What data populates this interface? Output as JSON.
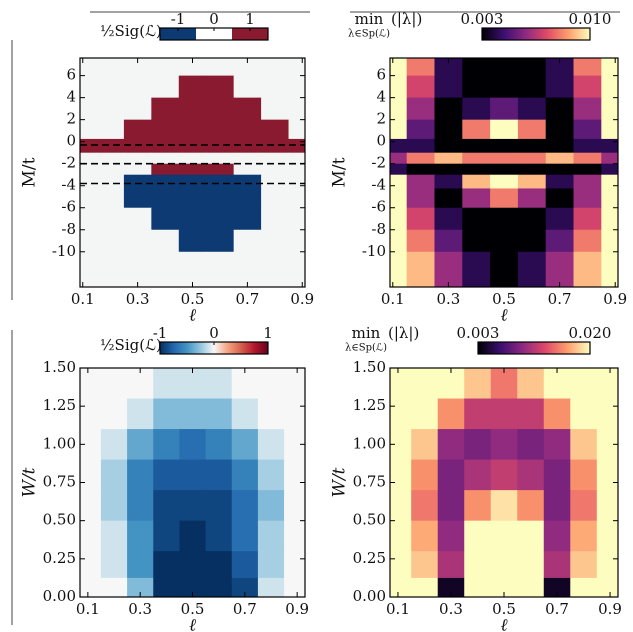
{
  "chart_data": [
    {
      "type": "heatmap",
      "xlabel": "ℓ",
      "ylabel": "M/t",
      "x": [
        0.1,
        0.2,
        0.3,
        0.4,
        0.5,
        0.6,
        0.7,
        0.8,
        0.9
      ],
      "y": [
        7,
        5,
        3,
        1,
        -0.5,
        -1.5,
        -2.5,
        -3.5,
        -5,
        -7,
        -9,
        -11
      ],
      "z": [
        [
          0,
          0,
          0,
          0,
          0,
          0,
          0,
          0,
          0
        ],
        [
          0,
          0,
          0,
          0,
          1,
          1,
          0,
          0,
          0
        ],
        [
          0,
          0,
          0,
          1,
          1,
          1,
          1,
          0,
          0
        ],
        [
          0,
          0,
          1,
          1,
          1,
          1,
          1,
          1,
          0
        ],
        [
          1,
          1,
          1,
          1,
          1,
          1,
          1,
          1,
          1
        ],
        [
          0,
          0,
          0,
          0,
          0,
          0,
          0,
          0,
          0
        ],
        [
          0,
          0,
          0,
          1,
          1,
          1,
          0,
          0,
          0
        ],
        [
          0,
          0,
          -1,
          -1,
          -1,
          -1,
          -1,
          0,
          0
        ],
        [
          0,
          0,
          -1,
          -1,
          -1,
          -1,
          -1,
          0,
          0
        ],
        [
          0,
          0,
          0,
          -1,
          -1,
          -1,
          -1,
          0,
          0
        ],
        [
          0,
          0,
          0,
          0,
          -1,
          -1,
          0,
          0,
          0
        ],
        [
          0,
          0,
          0,
          0,
          0,
          0,
          0,
          0,
          0
        ]
      ],
      "xlim": [
        0.09,
        0.91
      ],
      "ylim": [
        -13.2,
        7.6
      ],
      "xticks": [
        0.1,
        0.3,
        0.5,
        0.7,
        0.9
      ],
      "yticks": [
        -10,
        -8,
        -6,
        -4,
        -2,
        0,
        2,
        4,
        6
      ],
      "hlines": [
        -0.3,
        -2,
        -3.8
      ],
      "colorbar": {
        "label": "½Sig(ℒ)",
        "discrete": true,
        "clim": [
          -1.5,
          1.5
        ],
        "ticks": [
          -1,
          0,
          1
        ],
        "colors": [
          "#0d3a72",
          "#f4f5f5",
          "#8a1a2f"
        ]
      }
    },
    {
      "type": "heatmap",
      "xlabel": "ℓ",
      "ylabel": "M/t",
      "x": [
        0.1,
        0.2,
        0.3,
        0.4,
        0.5,
        0.6,
        0.7,
        0.8,
        0.9
      ],
      "y": [
        7,
        5,
        3,
        1,
        -0.5,
        -1.5,
        -2.5,
        -3.5,
        -5,
        -7,
        -9,
        -11
      ],
      "z": [
        [
          0.01,
          0.008,
          0.004,
          0.003,
          0.003,
          0.003,
          0.004,
          0.008,
          0.01
        ],
        [
          0.01,
          0.007,
          0.004,
          0.003,
          0.003,
          0.003,
          0.004,
          0.007,
          0.01
        ],
        [
          0.01,
          0.006,
          0.003,
          0.004,
          0.005,
          0.004,
          0.003,
          0.006,
          0.01
        ],
        [
          0.01,
          0.005,
          0.003,
          0.008,
          0.01,
          0.008,
          0.003,
          0.005,
          0.01
        ],
        [
          0.004,
          0.004,
          0.003,
          0.003,
          0.003,
          0.003,
          0.003,
          0.004,
          0.004
        ],
        [
          0.006,
          0.008,
          0.009,
          0.008,
          0.008,
          0.008,
          0.009,
          0.008,
          0.006
        ],
        [
          0.004,
          0.003,
          0.003,
          0.003,
          0.003,
          0.003,
          0.003,
          0.003,
          0.004
        ],
        [
          0.01,
          0.006,
          0.004,
          0.009,
          0.01,
          0.009,
          0.004,
          0.006,
          0.01
        ],
        [
          0.01,
          0.006,
          0.003,
          0.006,
          0.008,
          0.006,
          0.003,
          0.006,
          0.01
        ],
        [
          0.01,
          0.007,
          0.004,
          0.003,
          0.003,
          0.003,
          0.004,
          0.007,
          0.01
        ],
        [
          0.01,
          0.008,
          0.005,
          0.003,
          0.003,
          0.003,
          0.005,
          0.008,
          0.01
        ],
        [
          0.01,
          0.009,
          0.006,
          0.004,
          0.003,
          0.004,
          0.006,
          0.009,
          0.01
        ]
      ],
      "xlim": [
        0.09,
        0.91
      ],
      "ylim": [
        -13.2,
        7.6
      ],
      "xticks": [
        0.1,
        0.3,
        0.5,
        0.7,
        0.9
      ],
      "yticks": [
        -10,
        -8,
        -6,
        -4,
        -2,
        0,
        2,
        4,
        6
      ],
      "colorbar": {
        "label": "min",
        "label_sub": "λ∈Sp(ℒ)",
        "label_tail": "(|λ|)",
        "clim": [
          0.003,
          0.01
        ],
        "ticks": [
          0.003,
          {
            "value": 0.01,
            "label": "0.010"
          }
        ],
        "colors": [
          "#000004",
          "#3b0f70",
          "#8c2981",
          "#de4968",
          "#fe9f6d",
          "#fcfdbf"
        ]
      }
    },
    {
      "type": "heatmap",
      "xlabel": "ℓ",
      "ylabel": "W/t",
      "x": [
        0.1,
        0.2,
        0.3,
        0.4,
        0.5,
        0.6,
        0.7,
        0.8,
        0.9
      ],
      "y": [
        1.4,
        1.2,
        1.0,
        0.8,
        0.6,
        0.4,
        0.2,
        0.05
      ],
      "z": [
        [
          0,
          0,
          0,
          -0.1,
          -0.1,
          -0.1,
          0,
          0,
          0
        ],
        [
          0,
          0,
          -0.1,
          -0.3,
          -0.3,
          -0.3,
          -0.1,
          0,
          0
        ],
        [
          0,
          -0.1,
          -0.4,
          -0.6,
          -0.7,
          -0.6,
          -0.4,
          -0.1,
          0
        ],
        [
          0,
          -0.2,
          -0.6,
          -0.8,
          -0.8,
          -0.8,
          -0.6,
          -0.2,
          0
        ],
        [
          0,
          -0.2,
          -0.6,
          -0.9,
          -0.9,
          -0.9,
          -0.7,
          -0.3,
          0
        ],
        [
          0,
          -0.1,
          -0.5,
          -0.9,
          -1,
          -0.9,
          -0.7,
          -0.2,
          0
        ],
        [
          0,
          -0.1,
          -0.5,
          -1,
          -1,
          -1,
          -0.8,
          -0.2,
          0
        ],
        [
          0,
          0,
          -0.3,
          -1,
          -1,
          -1,
          -0.9,
          -0.1,
          0
        ]
      ],
      "xlim": [
        0.07,
        0.93
      ],
      "ylim": [
        0,
        1.5
      ],
      "xticks": [
        0.1,
        0.3,
        0.5,
        0.7,
        0.9
      ],
      "yticks": [
        {
          "value": 0,
          "label": "0.00"
        },
        0.25,
        {
          "value": 0.5,
          "label": "0.50"
        },
        0.75,
        {
          "value": 1,
          "label": "1.00"
        },
        1.25,
        {
          "value": 1.5,
          "label": "1.50"
        }
      ],
      "colorbar": {
        "label": "½Sig(ℒ)",
        "clim": [
          -1,
          1
        ],
        "ticks": [
          -1,
          0,
          1
        ],
        "colors": [
          "#053061",
          "#2166ac",
          "#4393c3",
          "#92c5de",
          "#f7f7f7",
          "#f4a582",
          "#d6604d",
          "#b2182b",
          "#67001f"
        ]
      }
    },
    {
      "type": "heatmap",
      "xlabel": "ℓ",
      "ylabel": "W/t",
      "x": [
        0.1,
        0.2,
        0.3,
        0.4,
        0.5,
        0.6,
        0.7,
        0.8,
        0.9
      ],
      "y": [
        1.4,
        1.2,
        1.0,
        0.8,
        0.6,
        0.4,
        0.2,
        0.05
      ],
      "z": [
        [
          0.02,
          0.02,
          0.02,
          0.018,
          0.015,
          0.018,
          0.02,
          0.02,
          0.02
        ],
        [
          0.02,
          0.02,
          0.016,
          0.012,
          0.012,
          0.012,
          0.016,
          0.02,
          0.02
        ],
        [
          0.02,
          0.018,
          0.01,
          0.009,
          0.01,
          0.009,
          0.01,
          0.018,
          0.02
        ],
        [
          0.02,
          0.016,
          0.009,
          0.011,
          0.012,
          0.011,
          0.009,
          0.016,
          0.02
        ],
        [
          0.02,
          0.015,
          0.009,
          0.016,
          0.019,
          0.016,
          0.009,
          0.015,
          0.02
        ],
        [
          0.02,
          0.017,
          0.01,
          0.02,
          0.02,
          0.02,
          0.01,
          0.017,
          0.02
        ],
        [
          0.02,
          0.018,
          0.011,
          0.02,
          0.02,
          0.02,
          0.011,
          0.018,
          0.02
        ],
        [
          0.02,
          0.02,
          0.004,
          0.02,
          0.02,
          0.02,
          0.004,
          0.02,
          0.02
        ]
      ],
      "xlim": [
        0.07,
        0.93
      ],
      "ylim": [
        0,
        1.5
      ],
      "xticks": [
        0.1,
        0.3,
        0.5,
        0.7,
        0.9
      ],
      "yticks": [
        {
          "value": 0,
          "label": "0.00"
        },
        0.25,
        {
          "value": 0.5,
          "label": "0.50"
        },
        0.75,
        {
          "value": 1,
          "label": "1.00"
        },
        1.25,
        {
          "value": 1.5,
          "label": "1.50"
        }
      ],
      "colorbar": {
        "label": "min",
        "label_sub": "λ∈Sp(ℒ)",
        "label_tail": "(|λ|)",
        "clim": [
          0.003,
          0.02
        ],
        "ticks": [
          0.003,
          {
            "value": 0.02,
            "label": "0.020"
          }
        ],
        "colors": [
          "#000004",
          "#3b0f70",
          "#8c2981",
          "#de4968",
          "#fe9f6d",
          "#fcfdbf"
        ]
      }
    }
  ]
}
